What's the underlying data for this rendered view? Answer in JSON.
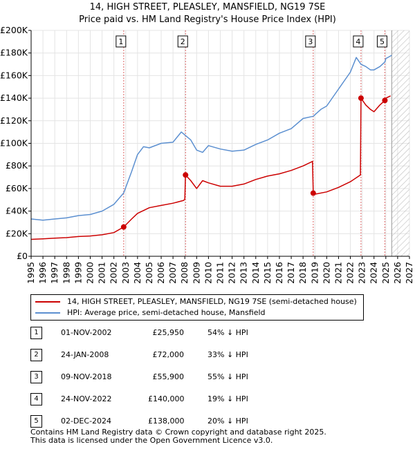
{
  "title_line1": "14, HIGH STREET, PLEASLEY, MANSFIELD, NG19 7SE",
  "title_line2": "Price paid vs. HM Land Registry's House Price Index (HPI)",
  "colors": {
    "property": "#cc0000",
    "hpi": "#5b8fd0",
    "marker_line": "#dd6666"
  },
  "legend": {
    "property": "14, HIGH STREET, PLEASLEY, MANSFIELD, NG19 7SE (semi-detached house)",
    "hpi": "HPI: Average price, semi-detached house, Mansfield"
  },
  "sales": [
    {
      "num": "1",
      "date": "01-NOV-2002",
      "price": "£25,950",
      "hpi_diff": "54% ↓ HPI"
    },
    {
      "num": "2",
      "date": "24-JAN-2008",
      "price": "£72,000",
      "hpi_diff": "33% ↓ HPI"
    },
    {
      "num": "3",
      "date": "09-NOV-2018",
      "price": "£55,900",
      "hpi_diff": "55% ↓ HPI"
    },
    {
      "num": "4",
      "date": "24-NOV-2022",
      "price": "£140,000",
      "hpi_diff": "19% ↓ HPI"
    },
    {
      "num": "5",
      "date": "02-DEC-2024",
      "price": "£138,000",
      "hpi_diff": "20% ↓ HPI"
    }
  ],
  "footer_line1": "Contains HM Land Registry data © Crown copyright and database right 2025.",
  "footer_line2": "This data is licensed under the Open Government Licence v3.0.",
  "chart_data": {
    "type": "line",
    "title": "14, HIGH STREET, PLEASLEY, MANSFIELD, NG19 7SE",
    "subtitle": "Price paid vs. HM Land Registry's House Price Index (HPI)",
    "xlabel": "",
    "ylabel": "",
    "xlim": [
      1995,
      2027
    ],
    "ylim": [
      0,
      200000
    ],
    "x_ticks": [
      1995,
      1996,
      1997,
      1998,
      1999,
      2000,
      2001,
      2002,
      2003,
      2004,
      2005,
      2006,
      2007,
      2008,
      2009,
      2010,
      2011,
      2012,
      2013,
      2014,
      2015,
      2016,
      2017,
      2018,
      2019,
      2020,
      2021,
      2022,
      2023,
      2024,
      2025,
      2026,
      2027
    ],
    "y_ticks": [
      0,
      20000,
      40000,
      60000,
      80000,
      100000,
      120000,
      140000,
      160000,
      180000,
      200000
    ],
    "y_tick_labels": [
      "£0",
      "£20K",
      "£40K",
      "£60K",
      "£80K",
      "£100K",
      "£120K",
      "£140K",
      "£160K",
      "£180K",
      "£200K"
    ],
    "forecast_start": 2025.5,
    "series": [
      {
        "name": "14, HIGH STREET, PLEASLEY, MANSFIELD, NG19 7SE (semi-detached house)",
        "color": "#cc0000",
        "x": [
          1995.0,
          1996.0,
          1997.0,
          1998.0,
          1999.0,
          2000.0,
          2001.0,
          2002.0,
          2002.83,
          2003.5,
          2004.0,
          2005.0,
          2006.0,
          2007.0,
          2007.9,
          2008.0,
          2008.06,
          2008.5,
          2009.0,
          2009.5,
          2010.0,
          2011.0,
          2012.0,
          2013.0,
          2014.0,
          2015.0,
          2016.0,
          2017.0,
          2018.0,
          2018.8,
          2018.86,
          2019.0,
          2020.0,
          2021.0,
          2022.0,
          2022.85,
          2022.9,
          2023.3,
          2023.7,
          2024.0,
          2024.5,
          2024.92,
          2025.0,
          2025.4
        ],
        "values": [
          15000,
          15500,
          16000,
          16500,
          17500,
          18000,
          19000,
          21000,
          25950,
          33000,
          38000,
          43000,
          45000,
          47000,
          49500,
          50500,
          72000,
          67000,
          60000,
          67000,
          65000,
          62000,
          62000,
          64000,
          68000,
          71000,
          73000,
          76000,
          80000,
          84000,
          55900,
          55000,
          57000,
          61000,
          66000,
          72000,
          140000,
          134000,
          130000,
          128000,
          134000,
          138000,
          140000,
          142000
        ]
      },
      {
        "name": "HPI: Average price, semi-detached house, Mansfield",
        "color": "#5b8fd0",
        "x": [
          1995.0,
          1996.0,
          1997.0,
          1998.0,
          1999.0,
          2000.0,
          2001.0,
          2002.0,
          2002.83,
          2003.5,
          2004.0,
          2004.5,
          2005.0,
          2006.0,
          2007.0,
          2007.7,
          2008.5,
          2009.0,
          2009.5,
          2010.0,
          2011.0,
          2012.0,
          2013.0,
          2014.0,
          2015.0,
          2016.0,
          2017.0,
          2018.0,
          2018.86,
          2019.5,
          2020.0,
          2021.0,
          2022.0,
          2022.5,
          2022.9,
          2023.3,
          2023.7,
          2024.0,
          2024.5,
          2024.92,
          2025.0,
          2025.5
        ],
        "values": [
          33000,
          32000,
          33000,
          34000,
          36000,
          37000,
          40000,
          46000,
          56000,
          75000,
          90000,
          97000,
          96000,
          100000,
          101000,
          110000,
          103000,
          94000,
          92000,
          98000,
          95000,
          93000,
          94000,
          99000,
          103000,
          109000,
          113000,
          122000,
          124000,
          130000,
          133000,
          148000,
          163000,
          176000,
          170000,
          168000,
          165000,
          165000,
          168000,
          172000,
          175000,
          178000
        ]
      }
    ],
    "sale_points": [
      {
        "label": "1",
        "x": 2002.83,
        "y": 25950
      },
      {
        "label": "2",
        "x": 2008.06,
        "y": 72000
      },
      {
        "label": "3",
        "x": 2018.86,
        "y": 55900
      },
      {
        "label": "4",
        "x": 2022.9,
        "y": 140000
      },
      {
        "label": "5",
        "x": 2024.92,
        "y": 138000
      }
    ]
  }
}
